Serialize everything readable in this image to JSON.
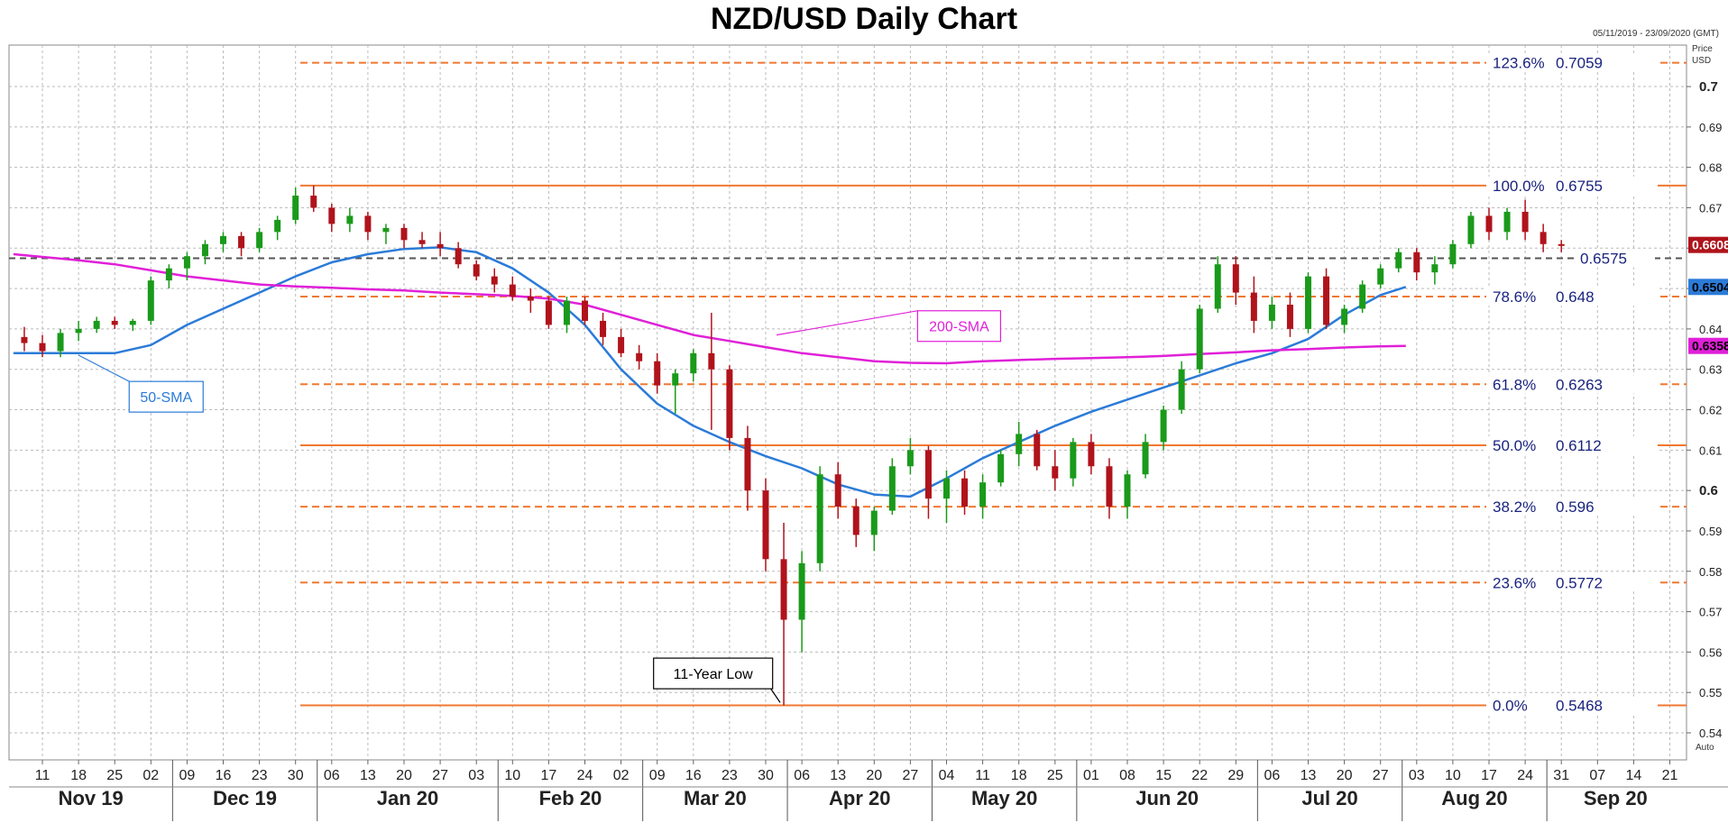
{
  "title": "NZD/USD Daily Chart",
  "date_range": "05/11/2019 - 23/09/2020 (GMT)",
  "price_axis_label": "Price",
  "currency_label": "USD",
  "auto_label": "Auto",
  "colors": {
    "bull": "#1a9a1a",
    "bear": "#b0131b",
    "sma50": "#2b7bd8",
    "sma200": "#e020d8",
    "fib_solid": "#f07830",
    "fib_dashed": "#f07830",
    "current": "#555555",
    "label_text": "#1a237e"
  },
  "chart_data": {
    "type": "candlestick",
    "ylim": [
      0.537,
      0.715
    ],
    "y_ticks": [
      0.54,
      0.55,
      0.56,
      0.57,
      0.58,
      0.59,
      0.6,
      0.61,
      0.62,
      0.63,
      0.64,
      0.65,
      0.66,
      0.67,
      0.68,
      0.69,
      0.7
    ],
    "bold_ticks": [
      0.6,
      0.7
    ],
    "x_day_ticks": [
      "11",
      "18",
      "25",
      "02",
      "09",
      "16",
      "23",
      "30",
      "06",
      "13",
      "20",
      "27",
      "03",
      "10",
      "17",
      "24",
      "02",
      "09",
      "16",
      "23",
      "30",
      "06",
      "13",
      "20",
      "27",
      "04",
      "11",
      "18",
      "25",
      "01",
      "08",
      "15",
      "22",
      "29",
      "06",
      "13",
      "20",
      "27",
      "03",
      "10",
      "17",
      "24",
      "31",
      "07",
      "14",
      "21"
    ],
    "x_month_labels": [
      "Nov 19",
      "Dec 19",
      "Jan 20",
      "Feb 20",
      "Mar 20",
      "Apr 20",
      "May 20",
      "Jun 20",
      "Jul 20",
      "Aug 20",
      "Sep 20"
    ],
    "x_month_bounds": [
      0,
      4,
      8,
      13,
      17,
      21,
      25,
      29,
      34,
      38,
      42,
      46
    ],
    "x_week_range": [
      -0.8,
      45.8
    ],
    "fib_levels": [
      {
        "label": "123.6%",
        "value": "0.7059",
        "y": 0.7059,
        "style": "dashed"
      },
      {
        "label": "100.0%",
        "value": "0.6755",
        "y": 0.6755,
        "style": "solid"
      },
      {
        "label": "78.6%",
        "value": "0.648",
        "y": 0.648,
        "style": "dashed"
      },
      {
        "label": "61.8%",
        "value": "0.6263",
        "y": 0.6263,
        "style": "dashed"
      },
      {
        "label": "50.0%",
        "value": "0.6112",
        "y": 0.6112,
        "style": "solid"
      },
      {
        "label": "38.2%",
        "value": "0.596",
        "y": 0.596,
        "style": "dashed"
      },
      {
        "label": "23.6%",
        "value": "0.5772",
        "y": 0.5772,
        "style": "dashed"
      },
      {
        "label": "0.0%",
        "value": "0.5468",
        "y": 0.5468,
        "style": "solid"
      }
    ],
    "current_line": {
      "label": "0.6575",
      "y": 0.6575
    },
    "price_tags": [
      {
        "text": "0.6608",
        "y": 0.6608,
        "color": "#b0131b"
      },
      {
        "text": "0.6504",
        "y": 0.6504,
        "color": "#2b7bd8"
      },
      {
        "text": "0.6358",
        "y": 0.6358,
        "color": "#e020d8"
      }
    ],
    "series": [
      {
        "name": "50-SMA",
        "x": [
          -0.8,
          1,
          2,
          3,
          4,
          5,
          6,
          7,
          8,
          9,
          10,
          11,
          12,
          13,
          14,
          15,
          16,
          17,
          18,
          19,
          20,
          21,
          22,
          23,
          24,
          25,
          26,
          27,
          28,
          29,
          30,
          31,
          32,
          33,
          34,
          35,
          36,
          37,
          37.7
        ],
        "y": [
          0.634,
          0.634,
          0.634,
          0.636,
          0.641,
          0.645,
          0.649,
          0.653,
          0.6565,
          0.6585,
          0.6598,
          0.6602,
          0.659,
          0.655,
          0.649,
          0.641,
          0.63,
          0.6215,
          0.616,
          0.612,
          0.6085,
          0.6055,
          0.6015,
          0.599,
          0.5985,
          0.603,
          0.608,
          0.612,
          0.616,
          0.6195,
          0.6225,
          0.6255,
          0.6285,
          0.6315,
          0.634,
          0.6375,
          0.6435,
          0.6484,
          0.6504
        ]
      },
      {
        "name": "200-SMA",
        "x": [
          -0.8,
          1,
          2,
          3,
          4,
          5,
          6,
          7,
          8,
          9,
          10,
          11,
          12,
          13,
          14,
          15,
          16,
          17,
          18,
          19,
          20,
          21,
          22,
          23,
          24,
          25,
          26,
          27,
          28,
          29,
          30,
          31,
          32,
          33,
          34,
          35,
          36,
          37,
          37.7
        ],
        "y": [
          0.6585,
          0.657,
          0.656,
          0.6545,
          0.653,
          0.652,
          0.651,
          0.6505,
          0.6502,
          0.6498,
          0.6495,
          0.649,
          0.6486,
          0.6482,
          0.6475,
          0.646,
          0.6435,
          0.641,
          0.6385,
          0.637,
          0.6355,
          0.634,
          0.633,
          0.632,
          0.6316,
          0.6315,
          0.632,
          0.6323,
          0.6326,
          0.6328,
          0.633,
          0.6333,
          0.6338,
          0.6342,
          0.6347,
          0.635,
          0.6354,
          0.6357,
          0.6358
        ]
      }
    ],
    "candles": [
      {
        "w": -0.5,
        "o": 0.638,
        "h": 0.6405,
        "l": 0.6345,
        "c": 0.6365
      },
      {
        "w": 0.0,
        "o": 0.6365,
        "h": 0.6385,
        "l": 0.633,
        "c": 0.6345
      },
      {
        "w": 0.5,
        "o": 0.6345,
        "h": 0.64,
        "l": 0.633,
        "c": 0.639
      },
      {
        "w": 1.0,
        "o": 0.639,
        "h": 0.642,
        "l": 0.637,
        "c": 0.64
      },
      {
        "w": 1.5,
        "o": 0.64,
        "h": 0.643,
        "l": 0.639,
        "c": 0.642
      },
      {
        "w": 2.0,
        "o": 0.642,
        "h": 0.643,
        "l": 0.64,
        "c": 0.641
      },
      {
        "w": 2.5,
        "o": 0.641,
        "h": 0.6425,
        "l": 0.6395,
        "c": 0.642
      },
      {
        "w": 3.0,
        "o": 0.642,
        "h": 0.653,
        "l": 0.641,
        "c": 0.652
      },
      {
        "w": 3.5,
        "o": 0.652,
        "h": 0.656,
        "l": 0.65,
        "c": 0.655
      },
      {
        "w": 4.0,
        "o": 0.655,
        "h": 0.659,
        "l": 0.652,
        "c": 0.658
      },
      {
        "w": 4.5,
        "o": 0.658,
        "h": 0.662,
        "l": 0.656,
        "c": 0.661
      },
      {
        "w": 5.0,
        "o": 0.661,
        "h": 0.664,
        "l": 0.659,
        "c": 0.663
      },
      {
        "w": 5.5,
        "o": 0.663,
        "h": 0.664,
        "l": 0.658,
        "c": 0.66
      },
      {
        "w": 6.0,
        "o": 0.66,
        "h": 0.665,
        "l": 0.659,
        "c": 0.664
      },
      {
        "w": 6.5,
        "o": 0.664,
        "h": 0.668,
        "l": 0.662,
        "c": 0.667
      },
      {
        "w": 7.0,
        "o": 0.667,
        "h": 0.675,
        "l": 0.666,
        "c": 0.673
      },
      {
        "w": 7.5,
        "o": 0.673,
        "h": 0.6755,
        "l": 0.669,
        "c": 0.67
      },
      {
        "w": 8.0,
        "o": 0.67,
        "h": 0.671,
        "l": 0.664,
        "c": 0.666
      },
      {
        "w": 8.5,
        "o": 0.666,
        "h": 0.67,
        "l": 0.664,
        "c": 0.668
      },
      {
        "w": 9.0,
        "o": 0.668,
        "h": 0.669,
        "l": 0.662,
        "c": 0.664
      },
      {
        "w": 9.5,
        "o": 0.664,
        "h": 0.666,
        "l": 0.661,
        "c": 0.665
      },
      {
        "w": 10.0,
        "o": 0.665,
        "h": 0.666,
        "l": 0.66,
        "c": 0.662
      },
      {
        "w": 10.5,
        "o": 0.662,
        "h": 0.664,
        "l": 0.66,
        "c": 0.661
      },
      {
        "w": 11.0,
        "o": 0.661,
        "h": 0.664,
        "l": 0.658,
        "c": 0.66
      },
      {
        "w": 11.5,
        "o": 0.66,
        "h": 0.6615,
        "l": 0.655,
        "c": 0.656
      },
      {
        "w": 12.0,
        "o": 0.656,
        "h": 0.657,
        "l": 0.652,
        "c": 0.653
      },
      {
        "w": 12.5,
        "o": 0.653,
        "h": 0.655,
        "l": 0.649,
        "c": 0.651
      },
      {
        "w": 13.0,
        "o": 0.651,
        "h": 0.653,
        "l": 0.647,
        "c": 0.648
      },
      {
        "w": 13.5,
        "o": 0.648,
        "h": 0.65,
        "l": 0.644,
        "c": 0.647
      },
      {
        "w": 14.0,
        "o": 0.647,
        "h": 0.648,
        "l": 0.64,
        "c": 0.641
      },
      {
        "w": 14.5,
        "o": 0.641,
        "h": 0.648,
        "l": 0.639,
        "c": 0.647
      },
      {
        "w": 15.0,
        "o": 0.647,
        "h": 0.648,
        "l": 0.641,
        "c": 0.642
      },
      {
        "w": 15.5,
        "o": 0.642,
        "h": 0.644,
        "l": 0.636,
        "c": 0.638
      },
      {
        "w": 16.0,
        "o": 0.638,
        "h": 0.64,
        "l": 0.633,
        "c": 0.634
      },
      {
        "w": 16.5,
        "o": 0.634,
        "h": 0.636,
        "l": 0.63,
        "c": 0.632
      },
      {
        "w": 17.0,
        "o": 0.632,
        "h": 0.634,
        "l": 0.624,
        "c": 0.626
      },
      {
        "w": 17.5,
        "o": 0.626,
        "h": 0.63,
        "l": 0.619,
        "c": 0.629
      },
      {
        "w": 18.0,
        "o": 0.629,
        "h": 0.635,
        "l": 0.627,
        "c": 0.634
      },
      {
        "w": 18.5,
        "o": 0.634,
        "h": 0.644,
        "l": 0.615,
        "c": 0.63
      },
      {
        "w": 19.0,
        "o": 0.63,
        "h": 0.631,
        "l": 0.61,
        "c": 0.613
      },
      {
        "w": 19.5,
        "o": 0.613,
        "h": 0.616,
        "l": 0.595,
        "c": 0.6
      },
      {
        "w": 20.0,
        "o": 0.6,
        "h": 0.603,
        "l": 0.58,
        "c": 0.583
      },
      {
        "w": 20.5,
        "o": 0.583,
        "h": 0.592,
        "l": 0.5468,
        "c": 0.568
      },
      {
        "w": 21.0,
        "o": 0.568,
        "h": 0.585,
        "l": 0.56,
        "c": 0.582
      },
      {
        "w": 21.5,
        "o": 0.582,
        "h": 0.606,
        "l": 0.58,
        "c": 0.604
      },
      {
        "w": 22.0,
        "o": 0.604,
        "h": 0.607,
        "l": 0.593,
        "c": 0.596
      },
      {
        "w": 22.5,
        "o": 0.596,
        "h": 0.598,
        "l": 0.586,
        "c": 0.589
      },
      {
        "w": 23.0,
        "o": 0.589,
        "h": 0.596,
        "l": 0.585,
        "c": 0.595
      },
      {
        "w": 23.5,
        "o": 0.595,
        "h": 0.608,
        "l": 0.594,
        "c": 0.606
      },
      {
        "w": 24.0,
        "o": 0.606,
        "h": 0.613,
        "l": 0.604,
        "c": 0.61
      },
      {
        "w": 24.5,
        "o": 0.61,
        "h": 0.611,
        "l": 0.593,
        "c": 0.598
      },
      {
        "w": 25.0,
        "o": 0.598,
        "h": 0.605,
        "l": 0.592,
        "c": 0.603
      },
      {
        "w": 25.5,
        "o": 0.603,
        "h": 0.605,
        "l": 0.594,
        "c": 0.596
      },
      {
        "w": 26.0,
        "o": 0.596,
        "h": 0.604,
        "l": 0.593,
        "c": 0.602
      },
      {
        "w": 26.5,
        "o": 0.602,
        "h": 0.61,
        "l": 0.601,
        "c": 0.609
      },
      {
        "w": 27.0,
        "o": 0.609,
        "h": 0.617,
        "l": 0.606,
        "c": 0.614
      },
      {
        "w": 27.5,
        "o": 0.614,
        "h": 0.615,
        "l": 0.605,
        "c": 0.606
      },
      {
        "w": 28.0,
        "o": 0.606,
        "h": 0.61,
        "l": 0.6,
        "c": 0.603
      },
      {
        "w": 28.5,
        "o": 0.603,
        "h": 0.613,
        "l": 0.601,
        "c": 0.612
      },
      {
        "w": 29.0,
        "o": 0.612,
        "h": 0.614,
        "l": 0.604,
        "c": 0.606
      },
      {
        "w": 29.5,
        "o": 0.606,
        "h": 0.608,
        "l": 0.593,
        "c": 0.596
      },
      {
        "w": 30.0,
        "o": 0.596,
        "h": 0.605,
        "l": 0.593,
        "c": 0.604
      },
      {
        "w": 30.5,
        "o": 0.604,
        "h": 0.614,
        "l": 0.603,
        "c": 0.612
      },
      {
        "w": 31.0,
        "o": 0.612,
        "h": 0.621,
        "l": 0.61,
        "c": 0.62
      },
      {
        "w": 31.5,
        "o": 0.62,
        "h": 0.632,
        "l": 0.619,
        "c": 0.63
      },
      {
        "w": 32.0,
        "o": 0.63,
        "h": 0.646,
        "l": 0.629,
        "c": 0.645
      },
      {
        "w": 32.5,
        "o": 0.645,
        "h": 0.658,
        "l": 0.644,
        "c": 0.656
      },
      {
        "w": 33.0,
        "o": 0.656,
        "h": 0.658,
        "l": 0.646,
        "c": 0.649
      },
      {
        "w": 33.5,
        "o": 0.649,
        "h": 0.653,
        "l": 0.639,
        "c": 0.642
      },
      {
        "w": 34.0,
        "o": 0.642,
        "h": 0.648,
        "l": 0.64,
        "c": 0.646
      },
      {
        "w": 34.5,
        "o": 0.646,
        "h": 0.649,
        "l": 0.638,
        "c": 0.64
      },
      {
        "w": 35.0,
        "o": 0.64,
        "h": 0.654,
        "l": 0.639,
        "c": 0.653
      },
      {
        "w": 35.5,
        "o": 0.653,
        "h": 0.655,
        "l": 0.64,
        "c": 0.641
      },
      {
        "w": 36.0,
        "o": 0.641,
        "h": 0.646,
        "l": 0.639,
        "c": 0.645
      },
      {
        "w": 36.5,
        "o": 0.645,
        "h": 0.652,
        "l": 0.644,
        "c": 0.651
      },
      {
        "w": 37.0,
        "o": 0.651,
        "h": 0.656,
        "l": 0.65,
        "c": 0.655
      },
      {
        "w": 37.5,
        "o": 0.655,
        "h": 0.66,
        "l": 0.654,
        "c": 0.659
      },
      {
        "w": 38.0,
        "o": 0.659,
        "h": 0.66,
        "l": 0.652,
        "c": 0.654
      },
      {
        "w": 38.5,
        "o": 0.654,
        "h": 0.658,
        "l": 0.651,
        "c": 0.656
      },
      {
        "w": 39.0,
        "o": 0.656,
        "h": 0.662,
        "l": 0.655,
        "c": 0.661
      },
      {
        "w": 39.5,
        "o": 0.661,
        "h": 0.669,
        "l": 0.66,
        "c": 0.668
      },
      {
        "w": 40.0,
        "o": 0.668,
        "h": 0.67,
        "l": 0.662,
        "c": 0.664
      },
      {
        "w": 40.5,
        "o": 0.664,
        "h": 0.67,
        "l": 0.662,
        "c": 0.669
      },
      {
        "w": 41.0,
        "o": 0.669,
        "h": 0.672,
        "l": 0.662,
        "c": 0.664
      },
      {
        "w": 41.5,
        "o": 0.664,
        "h": 0.666,
        "l": 0.659,
        "c": 0.661
      },
      {
        "w": 42.0,
        "o": 0.661,
        "h": 0.662,
        "l": 0.659,
        "c": 0.6608
      }
    ],
    "annotations": [
      {
        "text": "50-SMA",
        "anchor_week": 1.0,
        "anchor_y": 0.6335,
        "box_week": 2.4,
        "box_y": 0.627,
        "color": "#2b7bd8"
      },
      {
        "text": "200-SMA",
        "anchor_week": 20.3,
        "anchor_y": 0.6385,
        "box_week": 24.2,
        "box_y": 0.6445,
        "color": "#e020d8"
      },
      {
        "text": "11-Year Low",
        "anchor_week": 20.4,
        "anchor_y": 0.5475,
        "box_week": 16.9,
        "box_y": 0.5585,
        "color": "#000000"
      }
    ]
  }
}
